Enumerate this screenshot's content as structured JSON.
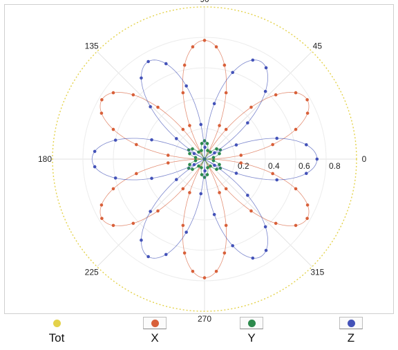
{
  "chart_data": {
    "type": "polar-scatter",
    "radial_ticks": [
      "0.2",
      "0.4",
      "0.6",
      "0.8"
    ],
    "radial_tick_values": [
      0.2,
      0.4,
      0.6,
      0.8
    ],
    "rmax": 1.0,
    "angle_labels": [
      {
        "angle": 0,
        "text": "0"
      },
      {
        "angle": 45,
        "text": "45"
      },
      {
        "angle": 90,
        "text": "90"
      },
      {
        "angle": 135,
        "text": "135"
      },
      {
        "angle": 180,
        "text": "180"
      },
      {
        "angle": 225,
        "text": "225"
      },
      {
        "angle": 270,
        "text": "270"
      },
      {
        "angle": 315,
        "text": "315"
      }
    ],
    "grid": true,
    "legend_position": "bottom",
    "series": [
      {
        "name": "Tot",
        "color": "#e4d24a",
        "model": "constant",
        "amplitude": 1.0,
        "points": 0
      },
      {
        "name": "X",
        "color": "#d8603a",
        "model": "sin3",
        "amplitude": 0.78,
        "point_step_deg": 6
      },
      {
        "name": "Y",
        "color": "#2c8a4c",
        "model": "sin3",
        "amplitude": 0.12,
        "point_step_deg": 10
      },
      {
        "name": "Z",
        "color": "#4352b8",
        "model": "cos3",
        "amplitude": 0.74,
        "point_step_deg": 8
      }
    ]
  },
  "legend": {
    "items": [
      {
        "label": "Tot",
        "color": "#e4d24a"
      },
      {
        "label": "X",
        "color": "#d8603a"
      },
      {
        "label": "Y",
        "color": "#2c8a4c"
      },
      {
        "label": "Z",
        "color": "#4352b8"
      }
    ]
  }
}
